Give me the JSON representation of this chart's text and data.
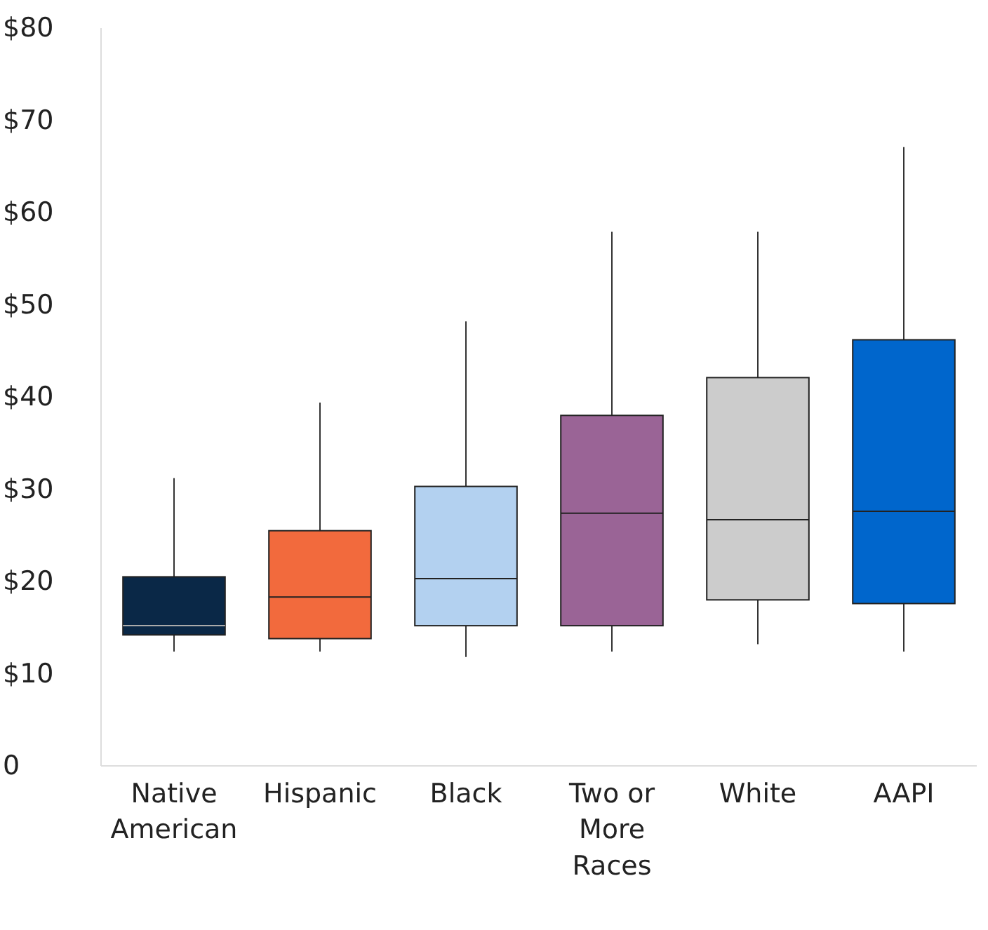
{
  "chart_data": {
    "type": "box",
    "categories": [
      "Native American",
      "Hispanic",
      "Black",
      "Two or More Races",
      "White",
      "AAPI"
    ],
    "colors": [
      "#0a2847",
      "#f26a3d",
      "#b3d1f0",
      "#9a6496",
      "#cccccc",
      "#0066cc"
    ],
    "boxes": [
      {
        "low": 12.4,
        "q1": 14.2,
        "median": 15.2,
        "q3": 20.5,
        "high": 31.2
      },
      {
        "low": 12.4,
        "q1": 13.8,
        "median": 18.3,
        "q3": 25.5,
        "high": 39.4
      },
      {
        "low": 11.8,
        "q1": 15.2,
        "median": 20.3,
        "q3": 30.3,
        "high": 48.2
      },
      {
        "low": 12.4,
        "q1": 15.2,
        "median": 27.4,
        "q3": 38.0,
        "high": 57.9
      },
      {
        "low": 13.2,
        "q1": 18.0,
        "median": 26.7,
        "q3": 42.1,
        "high": 57.9
      },
      {
        "low": 12.4,
        "q1": 17.6,
        "median": 27.6,
        "q3": 46.2,
        "high": 67.1
      }
    ],
    "ylim": [
      0,
      80
    ],
    "yticks": [
      0,
      {
        "value": 10,
        "label": "$10"
      },
      {
        "value": 20,
        "label": "$20"
      },
      {
        "value": 30,
        "label": "$30"
      },
      {
        "value": 40,
        "label": "$40"
      },
      {
        "value": 50,
        "label": "$50"
      },
      {
        "value": 60,
        "label": "$60"
      },
      {
        "value": 70,
        "label": "$70"
      },
      {
        "value": 80,
        "label": "$80"
      }
    ],
    "grid": false
  }
}
